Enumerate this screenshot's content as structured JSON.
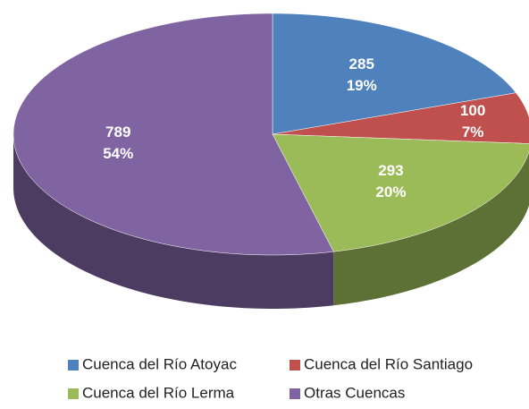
{
  "chart_data": {
    "type": "pie",
    "categories": [
      "Cuenca del Río Atoyac",
      "Cuenca del Río Santiago",
      "Cuenca del Río Lerma",
      "Otras Cuencas"
    ],
    "values": [
      285,
      100,
      293,
      789
    ],
    "percent_labels": [
      "19%",
      "7%",
      "20%",
      "54%"
    ],
    "colors": [
      "#4f81bd",
      "#c0504d",
      "#9bbb59",
      "#8064a2"
    ],
    "legend": "bottom"
  }
}
